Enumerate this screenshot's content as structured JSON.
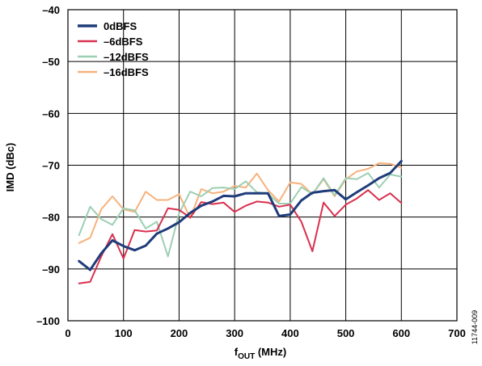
{
  "chart_data": {
    "type": "line",
    "title": "",
    "xlabel": {
      "main": "f",
      "sub": "OUT",
      "rest": " (MHz)"
    },
    "ylabel": "IMD (dBc)",
    "xlim": [
      0,
      700
    ],
    "ylim": [
      -100,
      -40
    ],
    "xticks": [
      0,
      100,
      200,
      300,
      400,
      500,
      600,
      700
    ],
    "yticks": [
      -40,
      -50,
      -60,
      -70,
      -80,
      -90,
      -100
    ],
    "xtick_labels": [
      "0",
      "100",
      "200",
      "300",
      "400",
      "500",
      "600",
      "700"
    ],
    "ytick_labels": [
      "–40",
      "–50",
      "–60",
      "–70",
      "–80",
      "–90",
      "–100"
    ],
    "grid": true,
    "legend_position": "top-left",
    "side_note": "11744-009",
    "x": [
      20,
      40,
      60,
      80,
      100,
      120,
      140,
      160,
      180,
      200,
      220,
      240,
      260,
      280,
      300,
      320,
      340,
      360,
      380,
      400,
      420,
      440,
      460,
      480,
      500,
      520,
      540,
      560,
      580,
      600
    ],
    "series": [
      {
        "name": "0dBFS",
        "color": "#1f3c7a",
        "width": 3,
        "values": [
          -88.5,
          -90.2,
          -87.0,
          -84.5,
          -85.6,
          -86.4,
          -85.5,
          -83.2,
          -82.2,
          -81.0,
          -79.2,
          -77.8,
          -77.0,
          -75.9,
          -76.0,
          -75.4,
          -75.4,
          -75.4,
          -79.8,
          -79.5,
          -76.8,
          -75.3,
          -75.0,
          -74.8,
          -76.6,
          -75.2,
          -73.9,
          -72.5,
          -71.5,
          -69.2
        ]
      },
      {
        "name": "–6dBFS",
        "color": "#d9304f",
        "width": 2,
        "values": [
          -92.8,
          -92.5,
          -87.6,
          -83.3,
          -88.0,
          -82.5,
          -82.8,
          -82.6,
          -78.3,
          -78.6,
          -80.1,
          -77.1,
          -77.5,
          -77.2,
          -79.0,
          -77.8,
          -77.0,
          -77.2,
          -78.0,
          -77.6,
          -80.9,
          -86.6,
          -77.2,
          -79.8,
          -77.6,
          -76.4,
          -74.8,
          -76.7,
          -75.4,
          -77.3
        ]
      },
      {
        "name": "–12dBFS",
        "color": "#9dcfb3",
        "width": 2,
        "values": [
          -83.5,
          -78.0,
          -80.4,
          -81.5,
          -78.3,
          -78.7,
          -82.2,
          -80.9,
          -87.6,
          -79.3,
          -75.1,
          -76.0,
          -74.4,
          -74.3,
          -74.6,
          -73.1,
          -75.2,
          -75.5,
          -77.4,
          -77.4,
          -74.2,
          -75.6,
          -72.5,
          -75.8,
          -72.5,
          -72.7,
          -71.5,
          -74.3,
          -71.8,
          -72.2
        ]
      },
      {
        "name": "–16dBFS",
        "color": "#f7b27b",
        "width": 2,
        "values": [
          -85.0,
          -84.0,
          -78.5,
          -76.0,
          -78.5,
          -79.0,
          -75.1,
          -76.7,
          -76.7,
          -75.6,
          -80.2,
          -74.6,
          -75.4,
          -75.1,
          -74.0,
          -74.3,
          -71.6,
          -74.8,
          -77.0,
          -73.3,
          -73.6,
          -75.6,
          -72.7,
          -76.0,
          -72.7,
          -71.2,
          -70.7,
          -69.6,
          -69.7,
          -70.5
        ]
      }
    ]
  }
}
